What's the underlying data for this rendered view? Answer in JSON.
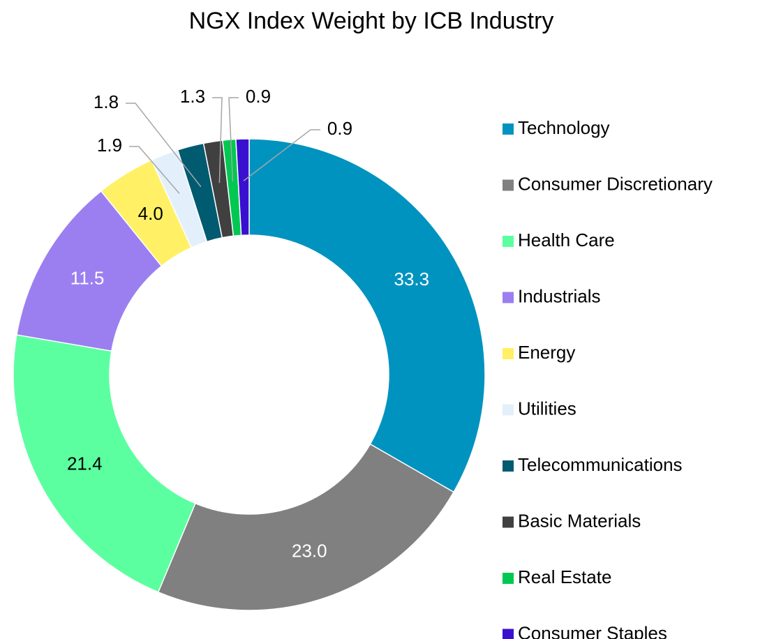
{
  "chart_data": {
    "type": "donut",
    "title": "NGX Index Weight by ICB Industry",
    "categories": [
      "Technology",
      "Consumer Discretionary",
      "Health Care",
      "Industrials",
      "Energy",
      "Utilities",
      "Telecommunications",
      "Basic Materials",
      "Real Estate",
      "Consumer Staples"
    ],
    "values": [
      33.3,
      23.0,
      21.4,
      11.5,
      4.0,
      1.9,
      1.8,
      1.3,
      0.9,
      0.9
    ],
    "value_labels": [
      "33.3",
      "23.0",
      "21.4",
      "11.5",
      "4.0",
      "1.9",
      "1.8",
      "1.3",
      "0.9",
      "0.9"
    ],
    "colors": [
      "#0093bf",
      "#808080",
      "#5cffa0",
      "#9b7ff0",
      "#fff066",
      "#e3f0fb",
      "#005a70",
      "#404040",
      "#00c851",
      "#3a10d0"
    ],
    "legend": "right"
  }
}
